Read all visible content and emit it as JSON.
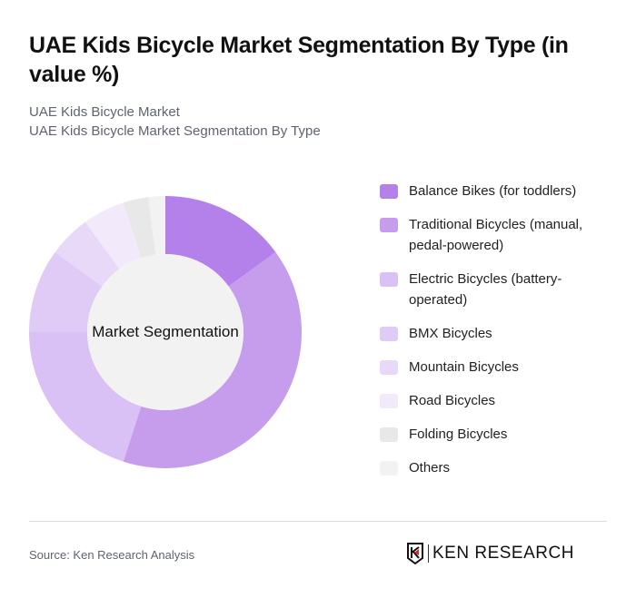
{
  "header": {
    "title": "UAE Kids Bicycle Market Segmentation By Type (in value %)",
    "subtitle_line1": "UAE Kids Bicycle Market",
    "subtitle_line2": "UAE Kids Bicycle Market Segmentation By Type"
  },
  "chart": {
    "center_label": "Market Segmentation"
  },
  "footer": {
    "source": "Source: Ken Research Analysis",
    "logo_text": "KEN RESEARCH"
  },
  "chart_data": {
    "type": "pie",
    "variant": "donut",
    "title": "UAE Kids Bicycle Market Segmentation By Type (in value %)",
    "center_label": "Market Segmentation",
    "categories": [
      "Balance Bikes (for toddlers)",
      "Traditional Bicycles (manual, pedal-powered)",
      "Electric Bicycles (battery-operated)",
      "BMX Bicycles",
      "Mountain Bicycles",
      "Road Bicycles",
      "Folding Bicycles",
      "Others"
    ],
    "values": [
      15,
      40,
      20,
      10,
      5,
      5,
      3,
      2
    ],
    "colors": [
      "#b481ea",
      "#c69ded",
      "#d9c0f5",
      "#e0cbf6",
      "#e8d9f8",
      "#f2eafb",
      "#e8e8e8",
      "#f2f2f2"
    ],
    "legend_position": "right"
  },
  "legend": {
    "items": [
      {
        "label": "Balance Bikes (for toddlers)",
        "color": "#b481ea"
      },
      {
        "label": "Traditional Bicycles (manual, pedal-powered)",
        "color": "#c69ded"
      },
      {
        "label": "Electric Bicycles (battery-operated)",
        "color": "#d9c0f5"
      },
      {
        "label": "BMX Bicycles",
        "color": "#e0cbf6"
      },
      {
        "label": "Mountain Bicycles",
        "color": "#e8d9f8"
      },
      {
        "label": "Road Bicycles",
        "color": "#f2eafb"
      },
      {
        "label": "Folding Bicycles",
        "color": "#e8e8e8"
      },
      {
        "label": "Others",
        "color": "#f2f2f2"
      }
    ]
  }
}
